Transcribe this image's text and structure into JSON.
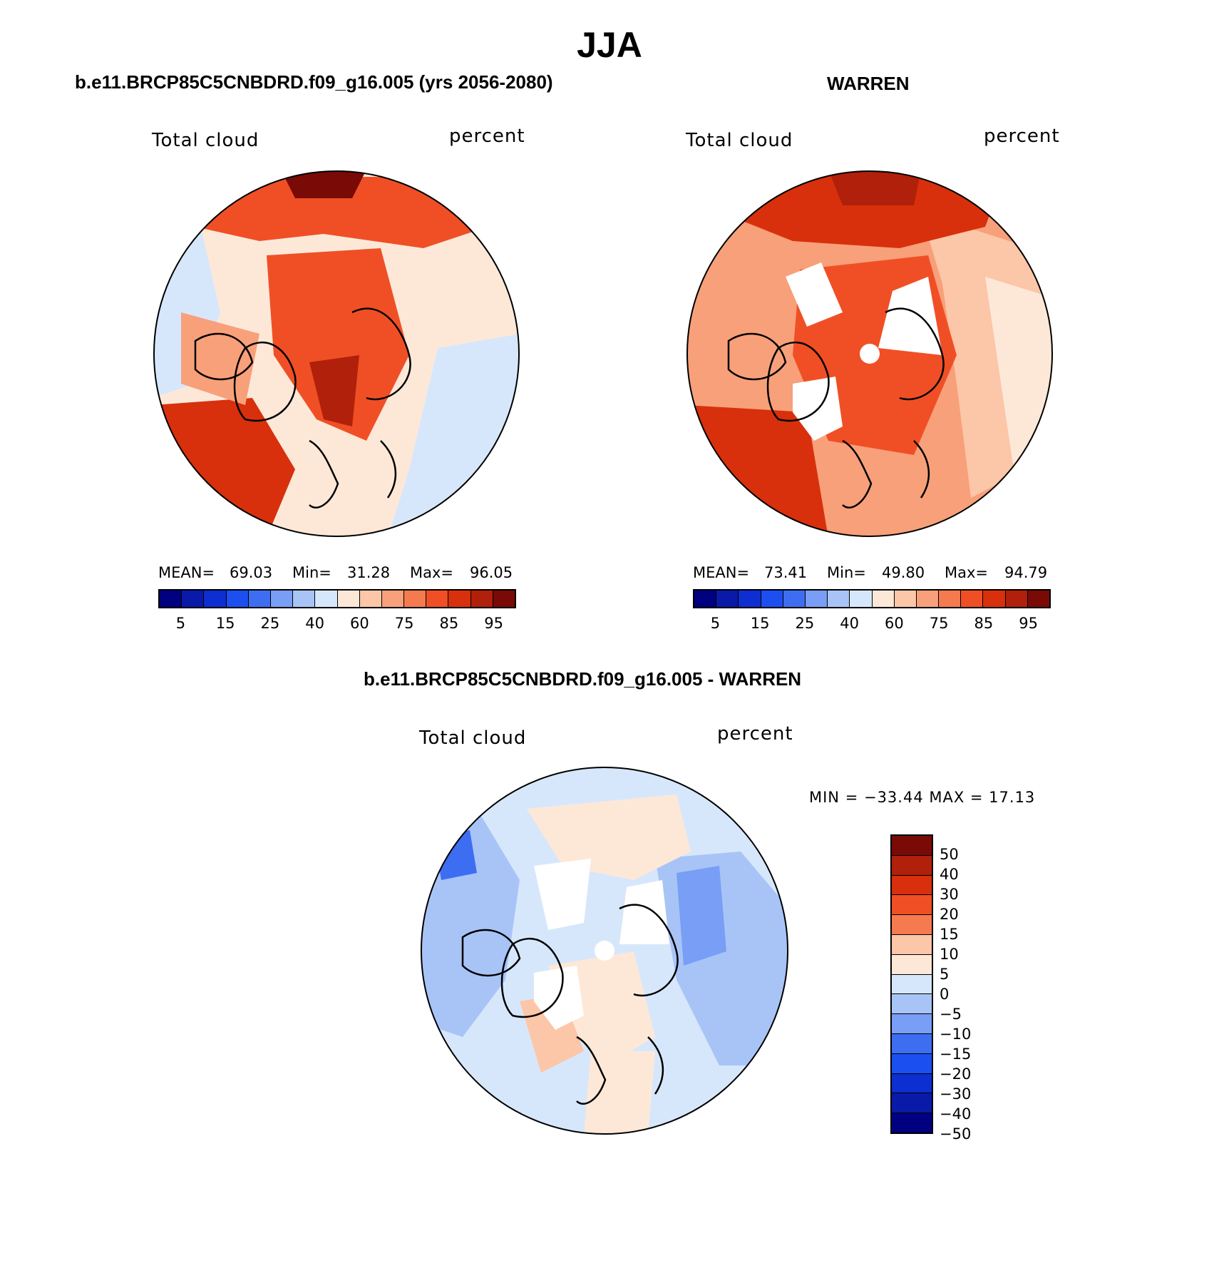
{
  "figure": {
    "title": "JJA"
  },
  "panels": [
    {
      "title": "b.e11.BRCP85C5CNBDRD.f09_g16.005 (yrs 2056-2080)",
      "left_label": "Total cloud",
      "right_label": "percent",
      "stats": {
        "mean_label": "MEAN=",
        "mean": "69.03",
        "min_label": "Min=",
        "min": "31.28",
        "max_label": "Max=",
        "max": "96.05"
      }
    },
    {
      "title": "WARREN",
      "left_label": "Total cloud",
      "right_label": "percent",
      "stats": {
        "mean_label": "MEAN=",
        "mean": "73.41",
        "min_label": "Min=",
        "min": "49.80",
        "max_label": "Max=",
        "max": "94.79"
      }
    },
    {
      "title": "b.e11.BRCP85C5CNBDRD.f09_g16.005 - WARREN",
      "left_label": "Total cloud",
      "right_label": "percent",
      "stats_text": "MIN = −33.44 MAX =  17.13"
    }
  ],
  "colorbar_abs": {
    "colors": [
      "#000080",
      "#0a1aa8",
      "#0d2ed0",
      "#1b4ff0",
      "#3d6ef2",
      "#789ef5",
      "#a8c4f7",
      "#d7e7fb",
      "#fde8d8",
      "#fcc6a8",
      "#f8a07a",
      "#f57a50",
      "#f04f26",
      "#d8300c",
      "#b0200a",
      "#7a0a05"
    ],
    "tick_labels": [
      "5",
      "15",
      "25",
      "40",
      "60",
      "75",
      "85",
      "95"
    ]
  },
  "colorbar_diff": {
    "colors": [
      "#7a0a05",
      "#b0200a",
      "#d8300c",
      "#f04f26",
      "#f57a50",
      "#fcc6a8",
      "#fde8d8",
      "#d7e7fb",
      "#a8c4f7",
      "#789ef5",
      "#3d6ef2",
      "#1b4ff0",
      "#0d2ed0",
      "#0a1aa8",
      "#000080"
    ],
    "tick_labels": [
      "50",
      "40",
      "30",
      "20",
      "15",
      "10",
      "5",
      "0",
      "−5",
      "−10",
      "−15",
      "−20",
      "−30",
      "−40",
      "−50"
    ]
  }
}
